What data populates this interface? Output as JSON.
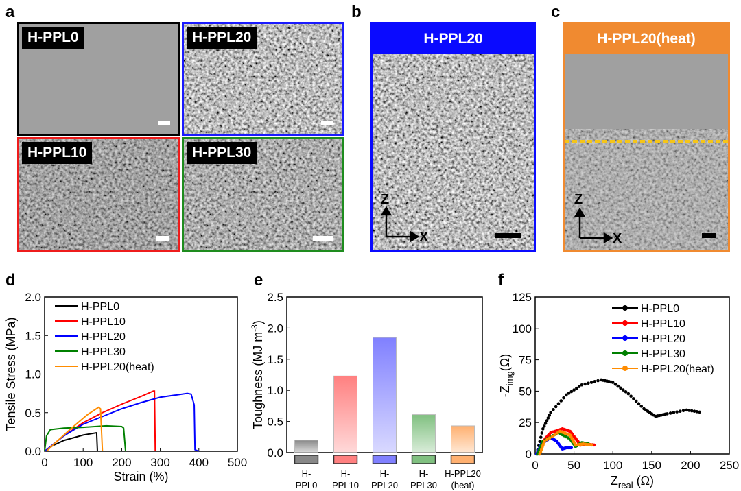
{
  "panel_labels": [
    "a",
    "b",
    "c",
    "d",
    "e",
    "f"
  ],
  "panel_a": {
    "images": [
      {
        "label": "H-PPL0",
        "border": "#000000"
      },
      {
        "label": "H-PPL20",
        "border": "#1a1aff"
      },
      {
        "label": "H-PPL10",
        "border": "#ee1c1c"
      },
      {
        "label": "H-PPL30",
        "border": "#1e8c1e"
      }
    ]
  },
  "panel_b": {
    "label": "H-PPL20",
    "color": "#0a0aff",
    "axis_z": "Z",
    "axis_x": "X"
  },
  "panel_c": {
    "label": "H-PPL20(heat)",
    "color": "#f08a30",
    "interface_line_color": "#f5c518",
    "axis_z": "Z",
    "axis_x": "X"
  },
  "chart_data": [
    {
      "type": "line",
      "xlabel": "Strain (%)",
      "ylabel": "Tensile Stress (MPa)",
      "xlim": [
        0,
        500
      ],
      "ylim": [
        0,
        2.0
      ],
      "xticks": [
        "0",
        "100",
        "200",
        "300",
        "400",
        "500"
      ],
      "yticks": [
        "0.0",
        "0.5",
        "1.0",
        "1.5",
        "2.0"
      ],
      "legend": "top-left",
      "series": [
        {
          "name": "H-PPL0",
          "color": "#000000",
          "x": [
            0,
            20,
            50,
            100,
            135,
            137
          ],
          "y": [
            0,
            0.07,
            0.14,
            0.21,
            0.24,
            0
          ]
        },
        {
          "name": "H-PPL10",
          "color": "#ff0000",
          "x": [
            0,
            50,
            100,
            150,
            200,
            250,
            282,
            285,
            287
          ],
          "y": [
            0,
            0.2,
            0.37,
            0.5,
            0.61,
            0.71,
            0.78,
            0.78,
            0
          ]
        },
        {
          "name": "H-PPL20",
          "color": "#0000ff",
          "x": [
            0,
            50,
            100,
            150,
            200,
            250,
            300,
            370,
            380,
            388,
            390,
            400
          ],
          "y": [
            0,
            0.2,
            0.35,
            0.45,
            0.55,
            0.63,
            0.7,
            0.75,
            0.74,
            0.6,
            0.02,
            0
          ]
        },
        {
          "name": "H-PPL30",
          "color": "#008000",
          "x": [
            0,
            5,
            15,
            50,
            100,
            160,
            200,
            205,
            210
          ],
          "y": [
            0,
            0.2,
            0.28,
            0.3,
            0.31,
            0.33,
            0.32,
            0.3,
            0
          ]
        },
        {
          "name": "H-PPL20(heat)",
          "color": "#ff8c00",
          "x": [
            5,
            30,
            70,
            110,
            140,
            145,
            150
          ],
          "y": [
            0,
            0.12,
            0.3,
            0.47,
            0.57,
            0.55,
            0
          ]
        }
      ]
    },
    {
      "type": "bar",
      "ylabel": "Toughness (MJ m",
      "ylabel_sup": "-3",
      "ylabel_end": ")",
      "ylim": [
        0,
        2.5
      ],
      "yticks": [
        "0.0",
        "0.5",
        "1.0",
        "1.5",
        "2.0",
        "2.5"
      ],
      "categories": [
        [
          "H-",
          "PPL0"
        ],
        [
          "H-",
          "PPL10"
        ],
        [
          "H-",
          "PPL20"
        ],
        [
          "H-",
          "PPL30"
        ],
        [
          "H-PPL20",
          "(heat)"
        ]
      ],
      "values": [
        0.2,
        1.23,
        1.85,
        0.61,
        0.43
      ],
      "colors": [
        "#888888",
        "#ff8080",
        "#8080ff",
        "#80c080",
        "#ffb070"
      ]
    },
    {
      "type": "scatter",
      "xlabel": "Z",
      "xlabel_sub": "real",
      "xlabel_end": " (Ω)",
      "ylabel": "-Z",
      "ylabel_sub": "img",
      "ylabel_end": "(Ω)",
      "xlim": [
        0,
        250
      ],
      "ylim": [
        0,
        125
      ],
      "xticks": [
        "0",
        "50",
        "100",
        "150",
        "200",
        "250"
      ],
      "yticks": [
        "0",
        "25",
        "50",
        "75",
        "100",
        "125"
      ],
      "legend": "top-right",
      "series": [
        {
          "name": "H-PPL0",
          "color": "#000000",
          "x": [
            2,
            10,
            20,
            40,
            60,
            85,
            100,
            120,
            140,
            155,
            170,
            195,
            215
          ],
          "y": [
            0,
            20,
            33,
            47,
            55,
            59,
            57,
            48,
            36,
            30,
            32,
            35,
            33
          ]
        },
        {
          "name": "H-PPL10",
          "color": "#ff0000",
          "x": [
            5,
            10,
            20,
            35,
            45,
            55,
            58,
            65,
            78
          ],
          "y": [
            0,
            10,
            17,
            20,
            18,
            10,
            7,
            8,
            7
          ]
        },
        {
          "name": "H-PPL20",
          "color": "#0000ff",
          "x": [
            2,
            8,
            20,
            28,
            35,
            40,
            48
          ],
          "y": [
            0,
            8,
            13,
            10,
            4,
            5,
            5
          ]
        },
        {
          "name": "H-PPL30",
          "color": "#008000",
          "x": [
            3,
            10,
            30,
            45,
            52,
            60,
            70
          ],
          "y": [
            0,
            10,
            17,
            12,
            6,
            9,
            8
          ]
        },
        {
          "name": "H-PPL20(heat)",
          "color": "#ff8c00",
          "x": [
            6,
            12,
            32,
            45,
            52,
            62,
            75
          ],
          "y": [
            0,
            10,
            18,
            15,
            7,
            8,
            7
          ]
        }
      ]
    }
  ]
}
